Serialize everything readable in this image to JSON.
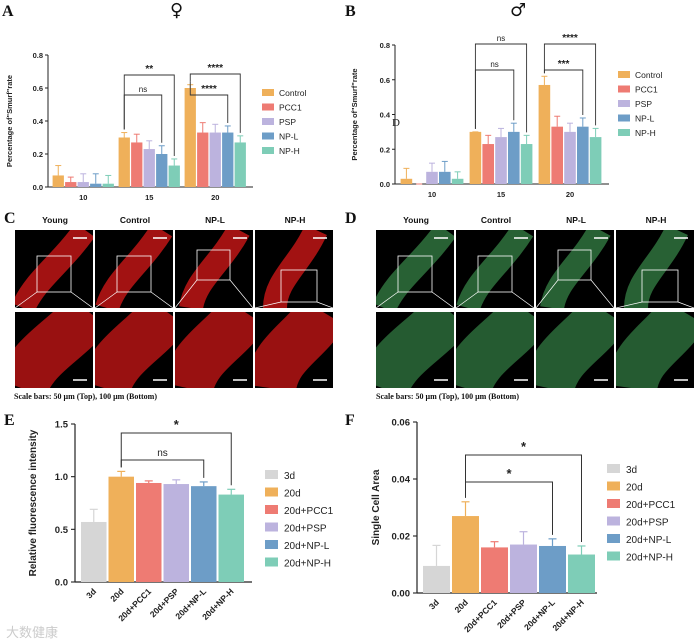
{
  "panel_labels": {
    "A": "A",
    "B": "B",
    "C": "C",
    "D": "D",
    "E": "E",
    "F": "F"
  },
  "sex_symbols": {
    "female": "♀",
    "male": "♂"
  },
  "stray_text_b": "D",
  "scale_note": "Scale bars: 50 μm (Top), 100 μm (Bottom)",
  "image_headers_c": [
    "Young",
    "Control",
    "NP-L",
    "NP-H"
  ],
  "image_headers_d": [
    "Young",
    "Control",
    "NP-L",
    "NP-H"
  ],
  "watermark": "大数健康",
  "colors": {
    "Control": "#efb05a",
    "PCC1": "#ee7b73",
    "PSP": "#bcb3de",
    "NP-L": "#6d9dc7",
    "NP-H": "#7ecdb7",
    "3d": "#d6d6d6",
    "red_fluor": "#b41414",
    "green_fluor": "#2c6b3a"
  },
  "chart_data": [
    {
      "panel": "A",
      "type": "bar",
      "title": "",
      "xlabel": "",
      "ylabel": "Percentage of\"Smurf\"rate",
      "categories": [
        "10",
        "15",
        "20"
      ],
      "ylim": [
        0,
        0.8
      ],
      "yticks": [
        "0.0",
        "0.2",
        "0.4",
        "0.6",
        "0.8"
      ],
      "grid": false,
      "legend": "right",
      "series": [
        {
          "name": "Control",
          "values": [
            0.07,
            0.3,
            0.6
          ],
          "errors": [
            0.06,
            0.03,
            0.02
          ]
        },
        {
          "name": "PCC1",
          "values": [
            0.03,
            0.27,
            0.33
          ],
          "errors": [
            0.03,
            0.05,
            0.06
          ]
        },
        {
          "name": "PSP",
          "values": [
            0.03,
            0.23,
            0.33
          ],
          "errors": [
            0.05,
            0.05,
            0.05
          ]
        },
        {
          "name": "NP-L",
          "values": [
            0.02,
            0.2,
            0.33
          ],
          "errors": [
            0.06,
            0.05,
            0.04
          ]
        },
        {
          "name": "NP-H",
          "values": [
            0.02,
            0.13,
            0.27
          ],
          "errors": [
            0.05,
            0.04,
            0.04
          ]
        }
      ],
      "annotations": [
        {
          "text": "**",
          "from": "15:Control",
          "to": "15:NP-H"
        },
        {
          "text": "ns",
          "from": "15:Control",
          "to": "15:NP-L"
        },
        {
          "text": "****",
          "from": "20:Control",
          "to": "20:NP-H"
        },
        {
          "text": "****",
          "from": "20:Control",
          "to": "20:NP-L"
        }
      ]
    },
    {
      "panel": "B",
      "type": "bar",
      "title": "",
      "xlabel": "",
      "ylabel": "Percentage of\"Smurf\"rate",
      "categories": [
        "10",
        "15",
        "20"
      ],
      "ylim": [
        0,
        0.8
      ],
      "yticks": [
        "0.0",
        "0.2",
        "0.4",
        "0.6",
        "0.8"
      ],
      "grid": false,
      "legend": "right",
      "series": [
        {
          "name": "Control",
          "values": [
            0.03,
            0.3,
            0.57
          ],
          "errors": [
            0.06,
            0.0,
            0.05
          ]
        },
        {
          "name": "PCC1",
          "values": [
            0.0,
            0.23,
            0.33
          ],
          "errors": [
            0.0,
            0.05,
            0.06
          ]
        },
        {
          "name": "PSP",
          "values": [
            0.07,
            0.27,
            0.3
          ],
          "errors": [
            0.05,
            0.05,
            0.05
          ]
        },
        {
          "name": "NP-L",
          "values": [
            0.07,
            0.3,
            0.33
          ],
          "errors": [
            0.06,
            0.05,
            0.05
          ]
        },
        {
          "name": "NP-H",
          "values": [
            0.03,
            0.23,
            0.27
          ],
          "errors": [
            0.04,
            0.05,
            0.05
          ]
        }
      ],
      "annotations": [
        {
          "text": "ns",
          "from": "15:Control",
          "to": "15:NP-H"
        },
        {
          "text": "ns",
          "from": "15:Control",
          "to": "15:NP-L"
        },
        {
          "text": "****",
          "from": "20:Control",
          "to": "20:NP-H"
        },
        {
          "text": "***",
          "from": "20:Control",
          "to": "20:NP-L"
        }
      ]
    },
    {
      "panel": "E",
      "type": "bar",
      "title": "",
      "xlabel": "",
      "ylabel": "Relative fluorescence intensity",
      "categories": [
        "3d",
        "20d",
        "20d+PCC1",
        "20d+PSP",
        "20d+NP-L",
        "20d+NP-H"
      ],
      "values": [
        0.57,
        1.0,
        0.94,
        0.93,
        0.91,
        0.83
      ],
      "errors": [
        0.12,
        0.05,
        0.02,
        0.04,
        0.04,
        0.05
      ],
      "ylim": [
        0,
        1.5
      ],
      "yticks": [
        "0.0",
        "0.5",
        "1.0",
        "1.5"
      ],
      "grid": false,
      "legend": "right",
      "annotations": [
        {
          "text": "*",
          "from": "20d",
          "to": "20d+NP-H"
        },
        {
          "text": "ns",
          "from": "20d",
          "to": "20d+NP-L"
        }
      ]
    },
    {
      "panel": "F",
      "type": "bar",
      "title": "",
      "xlabel": "",
      "ylabel": "Single Cell Area",
      "categories": [
        "3d",
        "20d",
        "20d+PCC1",
        "20d+PSP",
        "20d+NP-L",
        "20d+NP-H"
      ],
      "values": [
        0.0095,
        0.027,
        0.016,
        0.017,
        0.0165,
        0.0135
      ],
      "errors": [
        0.0072,
        0.005,
        0.002,
        0.0045,
        0.0025,
        0.003
      ],
      "ylim": [
        0,
        0.06
      ],
      "yticks": [
        "0.00",
        "0.02",
        "0.04",
        "0.06"
      ],
      "grid": false,
      "legend": "right",
      "annotations": [
        {
          "text": "*",
          "from": "20d",
          "to": "20d+NP-H"
        },
        {
          "text": "*",
          "from": "20d",
          "to": "20d+NP-L"
        }
      ]
    }
  ]
}
